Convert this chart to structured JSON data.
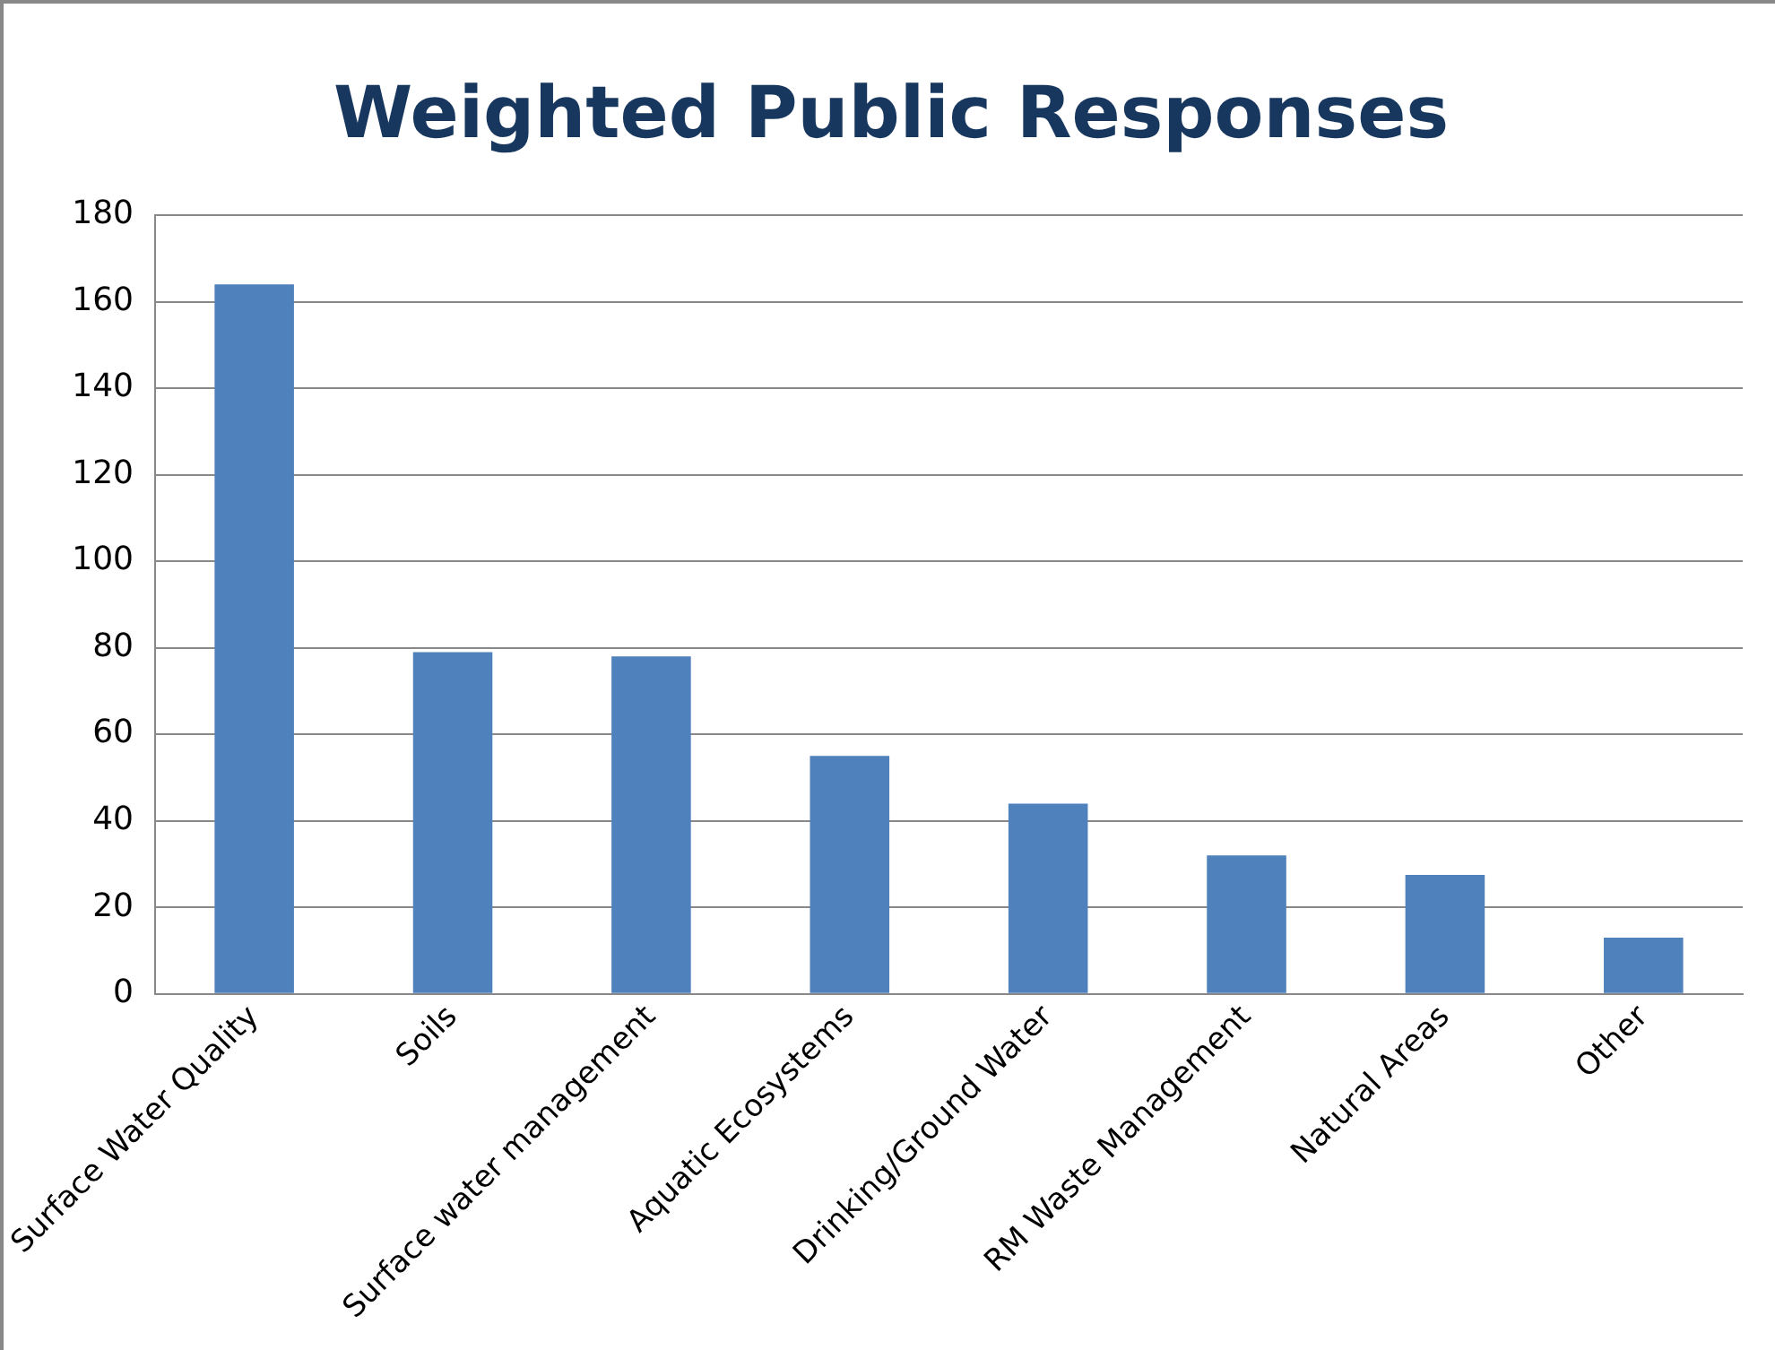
{
  "chart_data": {
    "type": "bar",
    "title": "Weighted Public Responses",
    "categories": [
      "Surface Water Quality",
      "Soils",
      "Surface water management",
      "Aquatic Ecosystems",
      "Drinking/Ground Water",
      "RM Waste Management",
      "Natural Areas",
      "Other"
    ],
    "values": [
      164,
      79,
      78,
      55,
      44,
      32,
      27.5,
      13
    ],
    "color": "#4f81bd",
    "ylim": [
      0,
      180
    ],
    "yticks": [
      0,
      20,
      40,
      60,
      80,
      100,
      120,
      140,
      160,
      180
    ],
    "grid": "y"
  }
}
